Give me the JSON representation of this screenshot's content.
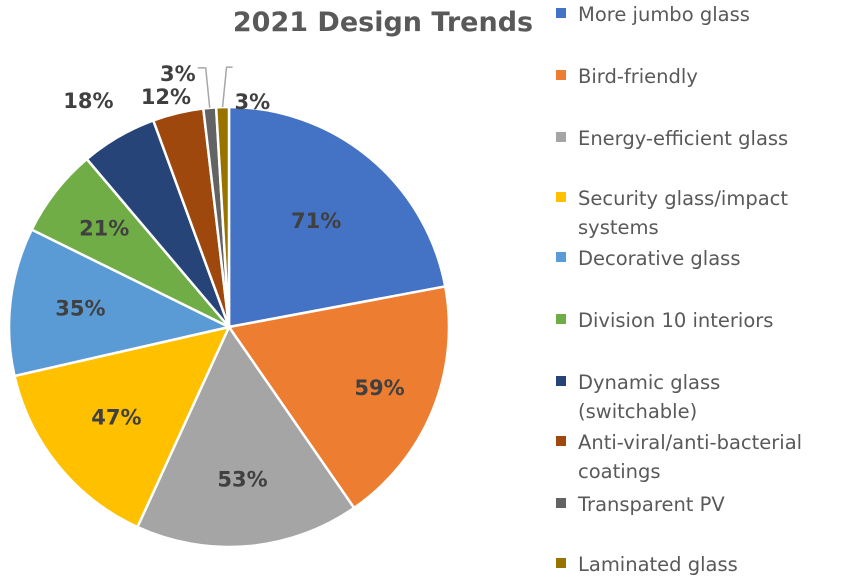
{
  "chart_data": {
    "type": "pie",
    "title": "2021 Design Trends",
    "categories": [
      "More jumbo glass",
      "Bird-friendly",
      "Energy-efficient glass",
      "Security glass/impact systems",
      "Decorative glass",
      "Division 10 interiors",
      "Dynamic glass (switchable)",
      "Anti-viral/anti-bacterial coatings",
      "Transparent PV",
      "Laminated glass"
    ],
    "values": [
      71,
      59,
      53,
      47,
      35,
      21,
      18,
      12,
      3,
      3
    ],
    "labels": [
      "71%",
      "59%",
      "53%",
      "47%",
      "35%",
      "21%",
      "18%",
      "12%",
      "3%",
      "3%"
    ],
    "colors": [
      "#4472C4",
      "#ED7D31",
      "#A5A5A5",
      "#FFC000",
      "#5B9BD5",
      "#70AD47",
      "#264478",
      "#9E480E",
      "#636363",
      "#997300"
    ],
    "legend_position": "right"
  }
}
